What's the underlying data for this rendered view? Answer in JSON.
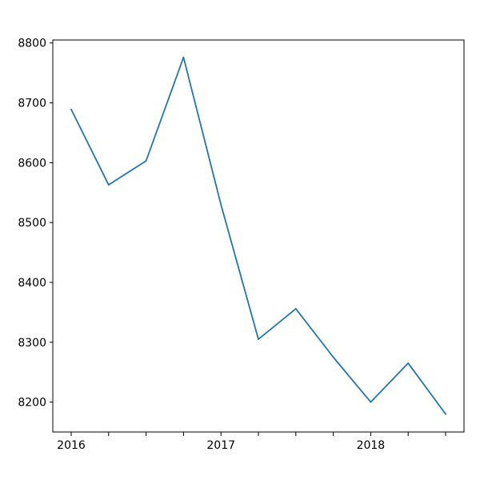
{
  "chart_data": {
    "type": "line",
    "title": "",
    "xlabel": "",
    "ylabel": "",
    "x": [
      "2016-Q1",
      "2016-Q2",
      "2016-Q3",
      "2016-Q4",
      "2017-Q1",
      "2017-Q2",
      "2017-Q3",
      "2017-Q4",
      "2018-Q1",
      "2018-Q2",
      "2018-Q3"
    ],
    "series": [
      {
        "values": [
          8689,
          8563,
          8603,
          8776,
          8530,
          8305,
          8356,
          8275,
          8200,
          8265,
          8180
        ],
        "color": "#1f77b4"
      }
    ],
    "ylim": [
      8150,
      8805
    ],
    "yticks": [
      8200,
      8300,
      8400,
      8500,
      8600,
      8700,
      8800
    ],
    "xticks": [
      {
        "at": "2016-Q1",
        "label": "2016"
      },
      {
        "at": "2016-Q2",
        "label": ""
      },
      {
        "at": "2016-Q3",
        "label": ""
      },
      {
        "at": "2016-Q4",
        "label": ""
      },
      {
        "at": "2017-Q1",
        "label": "2017"
      },
      {
        "at": "2017-Q2",
        "label": ""
      },
      {
        "at": "2017-Q3",
        "label": ""
      },
      {
        "at": "2017-Q4",
        "label": ""
      },
      {
        "at": "2018-Q1",
        "label": "2018"
      },
      {
        "at": "2018-Q2",
        "label": ""
      },
      {
        "at": "2018-Q3",
        "label": ""
      }
    ],
    "grid": false,
    "legend": "none"
  }
}
